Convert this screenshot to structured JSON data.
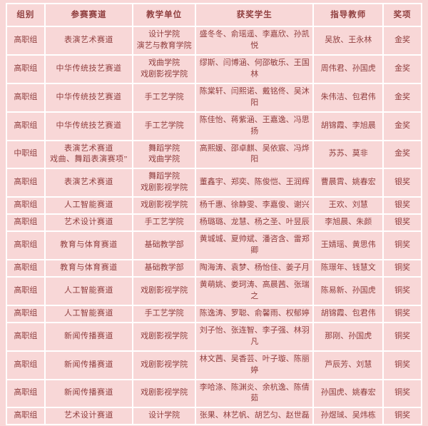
{
  "colors": {
    "background": "#f8d7d7",
    "grid": "#ffffff",
    "text": "#8f3e3e"
  },
  "table": {
    "headers": [
      "组别",
      "参赛赛道",
      "教学单位",
      "获奖学生",
      "指导教师",
      "奖项"
    ],
    "rows": [
      {
        "group": "高职组",
        "track": [
          "表演艺术赛道"
        ],
        "unit": [
          "设计学院",
          "演艺与教育学院"
        ],
        "students": "盛冬冬、俞瑶遥、李嘉欣、孙凯悦",
        "teachers": "吴放、王永林",
        "award": "金奖"
      },
      {
        "group": "高职组",
        "track": [
          "中华传统技艺赛道"
        ],
        "unit": [
          "戏曲学院",
          "戏剧影视学院"
        ],
        "students": "缪斯、闫博涵、何邵敏乐、王国林",
        "teachers": "周伟君、孙国虎",
        "award": "金奖"
      },
      {
        "group": "高职组",
        "track": [
          "中华传统技艺赛道"
        ],
        "unit": [
          "手工艺学院"
        ],
        "students": "陈棠轩、闫熙诺、戴铭佟、吴沐阳",
        "teachers": "朱伟洁、包君伟",
        "award": "金奖"
      },
      {
        "group": "高职组",
        "track": [
          "中华传统技艺赛道"
        ],
        "unit": [
          "手工艺学院"
        ],
        "students": "陈佳怡、蒋紫涵、王嘉逸、冯思扬",
        "teachers": "胡锦霞、李旭晨",
        "award": "金奖"
      },
      {
        "group": "中职组",
        "track": [
          "表演艺术赛道",
          "戏曲、舞蹈表演赛项”"
        ],
        "unit": [
          "舞蹈学院",
          "戏曲学院"
        ],
        "students": "高熙媛、邵卓麒、吴依宸、冯烨阳",
        "teachers": "苏苏、莫非",
        "award": "金奖"
      },
      {
        "group": "高职组",
        "track": [
          "表演艺术赛道"
        ],
        "unit": [
          "舞蹈学院",
          "戏剧影视学院"
        ],
        "students": "董鑫宇、郑奕、陈俊恺、王润辉",
        "teachers": "曹晨霄、姚春宏",
        "award": "银奖"
      },
      {
        "group": "高职组",
        "track": [
          "人工智能赛道"
        ],
        "unit": [
          "戏剧影视学院"
        ],
        "students": "杨千惠、徐静雯、李嘉俊、谢兴",
        "teachers": "王欢、刘慧",
        "award": "银奖"
      },
      {
        "group": "高职组",
        "track": [
          "艺术设计赛道"
        ],
        "unit": [
          "手工艺学院"
        ],
        "students": "杨璐璐、龙慧、杨之圣、叶昱辰",
        "teachers": "李旭晨、朱颜",
        "award": "银奖"
      },
      {
        "group": "高职组",
        "track": [
          "教育与体育赛道"
        ],
        "unit": [
          "基础教学部"
        ],
        "students": "黄城城、夏帅斌、潘咨含、雷郑卿",
        "teachers": "王婧瑶、黄思伟",
        "award": "铜奖"
      },
      {
        "group": "高职组",
        "track": [
          "教育与体育赛道"
        ],
        "unit": [
          "基础教学部"
        ],
        "students": "陶海涛、袁梦、杨怡佳、姜子月",
        "teachers": "陈璟年、钱慧文",
        "award": "铜奖"
      },
      {
        "group": "高职组",
        "track": [
          "人工智能赛道"
        ],
        "unit": [
          "戏剧影视学院"
        ],
        "students": "黄萌姚、娄珂涛、高晨茜、张瑞之",
        "teachers": "陈易新、孙国虎",
        "award": "铜奖"
      },
      {
        "group": "高职组",
        "track": [
          "人工智能赛道"
        ],
        "unit": [
          "手工艺学院"
        ],
        "students": "陈逸涛、罗聪、俞馨雨、权郁婷",
        "teachers": "胡锦霞、包君伟",
        "award": "铜奖"
      },
      {
        "group": "高职组",
        "track": [
          "新闻传播赛道"
        ],
        "unit": [
          "戏剧影视学院"
        ],
        "students": "刘子怡、张连智、李子强、林羽凡",
        "teachers": "那刚、孙国虎",
        "award": "铜奖"
      },
      {
        "group": "高职组",
        "track": [
          "新闻传播赛道"
        ],
        "unit": [
          "戏剧影视学院"
        ],
        "students": "林文茜、吴香芸、叶子璇、陈丽婷",
        "teachers": "芦辰芳、刘慧",
        "award": "铜奖"
      },
      {
        "group": "高职组",
        "track": [
          "新闻传播赛道"
        ],
        "unit": [
          "戏剧影视学院"
        ],
        "students": "李哈涤、陈渊炎、余杭逸、陈倩茹",
        "teachers": "孙国虎、姚春宏",
        "award": "铜奖"
      },
      {
        "group": "高职组",
        "track": [
          "艺术设计赛道"
        ],
        "unit": [
          "设计学院"
        ],
        "students": "张果、林艺帆、胡艺匀、赵世磊",
        "teachers": "孙煜珹、吴炜栋",
        "award": "铜奖"
      }
    ]
  }
}
